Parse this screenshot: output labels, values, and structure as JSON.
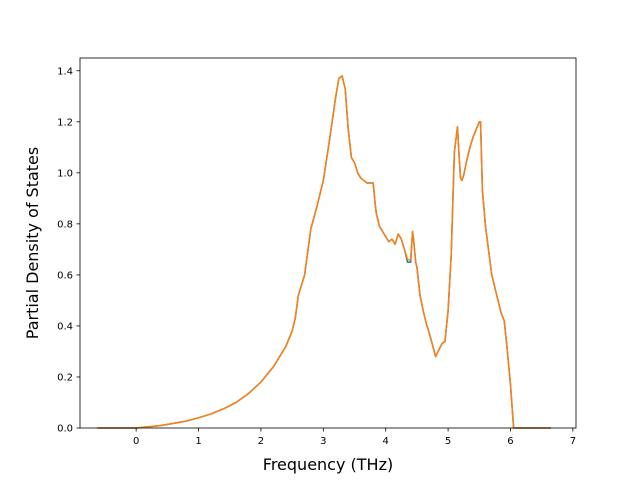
{
  "chart_data": {
    "type": "line",
    "title": "",
    "xlabel": "Frequency (THz)",
    "ylabel": "Partial Density of States",
    "xlim": [
      -0.9,
      7.05
    ],
    "ylim": [
      0.0,
      1.45
    ],
    "xticks": [
      0,
      1,
      2,
      3,
      4,
      5,
      6,
      7
    ],
    "yticks": [
      0.0,
      0.2,
      0.4,
      0.6,
      0.8,
      1.0,
      1.2,
      1.4
    ],
    "xtick_labels": [
      "0",
      "1",
      "2",
      "3",
      "4",
      "5",
      "6",
      "7"
    ],
    "ytick_labels": [
      "0.0",
      "0.2",
      "0.4",
      "0.6",
      "0.8",
      "1.0",
      "1.2",
      "1.4"
    ],
    "grid": false,
    "legend": false,
    "series": [
      {
        "color": "#1f77b4",
        "x": [
          -0.62,
          -0.3,
          0.0,
          0.2,
          0.4,
          0.6,
          0.8,
          1.0,
          1.2,
          1.4,
          1.6,
          1.8,
          2.0,
          2.2,
          2.4,
          2.5,
          2.55,
          2.6,
          2.7,
          2.8,
          2.9,
          3.0,
          3.1,
          3.2,
          3.25,
          3.3,
          3.35,
          3.4,
          3.45,
          3.5,
          3.55,
          3.6,
          3.7,
          3.8,
          3.83,
          3.85,
          3.9,
          4.0,
          4.05,
          4.1,
          4.15,
          4.2,
          4.25,
          4.3,
          4.35,
          4.4,
          4.43,
          4.45,
          4.48,
          4.5,
          4.55,
          4.6,
          4.65,
          4.7,
          4.8,
          4.9,
          4.95,
          5.0,
          5.05,
          5.1,
          5.15,
          5.18,
          5.2,
          5.22,
          5.25,
          5.3,
          5.32,
          5.35,
          5.4,
          5.45,
          5.5,
          5.52,
          5.55,
          5.6,
          5.7,
          5.8,
          5.85,
          5.9,
          5.95,
          6.0,
          6.05,
          6.2,
          6.65
        ],
        "y": [
          0.0,
          0.0,
          0.0,
          0.005,
          0.01,
          0.018,
          0.027,
          0.04,
          0.055,
          0.075,
          0.1,
          0.135,
          0.18,
          0.24,
          0.32,
          0.38,
          0.43,
          0.52,
          0.6,
          0.78,
          0.87,
          0.97,
          1.13,
          1.3,
          1.37,
          1.38,
          1.33,
          1.17,
          1.06,
          1.04,
          1.0,
          0.98,
          0.96,
          0.96,
          0.88,
          0.84,
          0.79,
          0.75,
          0.73,
          0.74,
          0.72,
          0.76,
          0.74,
          0.7,
          0.65,
          0.65,
          0.77,
          0.73,
          0.65,
          0.63,
          0.52,
          0.46,
          0.41,
          0.37,
          0.28,
          0.33,
          0.34,
          0.46,
          0.68,
          1.08,
          1.18,
          1.05,
          0.98,
          0.97,
          0.99,
          1.05,
          1.07,
          1.1,
          1.14,
          1.17,
          1.2,
          1.2,
          0.93,
          0.79,
          0.6,
          0.5,
          0.45,
          0.42,
          0.3,
          0.17,
          0.0,
          0.0,
          0.0
        ]
      },
      {
        "color": "#ff7f0e",
        "x": [
          -0.62,
          -0.3,
          0.0,
          0.2,
          0.4,
          0.6,
          0.8,
          1.0,
          1.2,
          1.4,
          1.6,
          1.8,
          2.0,
          2.2,
          2.4,
          2.5,
          2.55,
          2.6,
          2.7,
          2.8,
          2.9,
          3.0,
          3.1,
          3.2,
          3.25,
          3.3,
          3.35,
          3.4,
          3.45,
          3.5,
          3.55,
          3.6,
          3.7,
          3.8,
          3.83,
          3.85,
          3.9,
          4.0,
          4.05,
          4.1,
          4.15,
          4.2,
          4.25,
          4.3,
          4.35,
          4.4,
          4.43,
          4.45,
          4.48,
          4.5,
          4.55,
          4.6,
          4.65,
          4.7,
          4.8,
          4.9,
          4.95,
          5.0,
          5.05,
          5.1,
          5.15,
          5.18,
          5.2,
          5.22,
          5.25,
          5.3,
          5.32,
          5.35,
          5.4,
          5.45,
          5.5,
          5.52,
          5.55,
          5.6,
          5.7,
          5.8,
          5.85,
          5.9,
          5.95,
          6.0,
          6.05,
          6.2,
          6.65
        ],
        "y": [
          0.0,
          0.0,
          0.0,
          0.005,
          0.01,
          0.018,
          0.027,
          0.04,
          0.055,
          0.075,
          0.1,
          0.135,
          0.18,
          0.24,
          0.32,
          0.38,
          0.43,
          0.52,
          0.6,
          0.78,
          0.87,
          0.97,
          1.13,
          1.3,
          1.37,
          1.38,
          1.33,
          1.17,
          1.06,
          1.04,
          1.0,
          0.98,
          0.96,
          0.96,
          0.88,
          0.84,
          0.79,
          0.75,
          0.73,
          0.74,
          0.72,
          0.76,
          0.74,
          0.7,
          0.66,
          0.66,
          0.77,
          0.73,
          0.65,
          0.63,
          0.52,
          0.46,
          0.41,
          0.37,
          0.28,
          0.33,
          0.34,
          0.46,
          0.68,
          1.08,
          1.18,
          1.05,
          0.98,
          0.97,
          0.99,
          1.05,
          1.07,
          1.1,
          1.14,
          1.17,
          1.2,
          1.2,
          0.93,
          0.79,
          0.6,
          0.5,
          0.45,
          0.42,
          0.3,
          0.17,
          0.0,
          0.0,
          0.0
        ]
      }
    ]
  }
}
